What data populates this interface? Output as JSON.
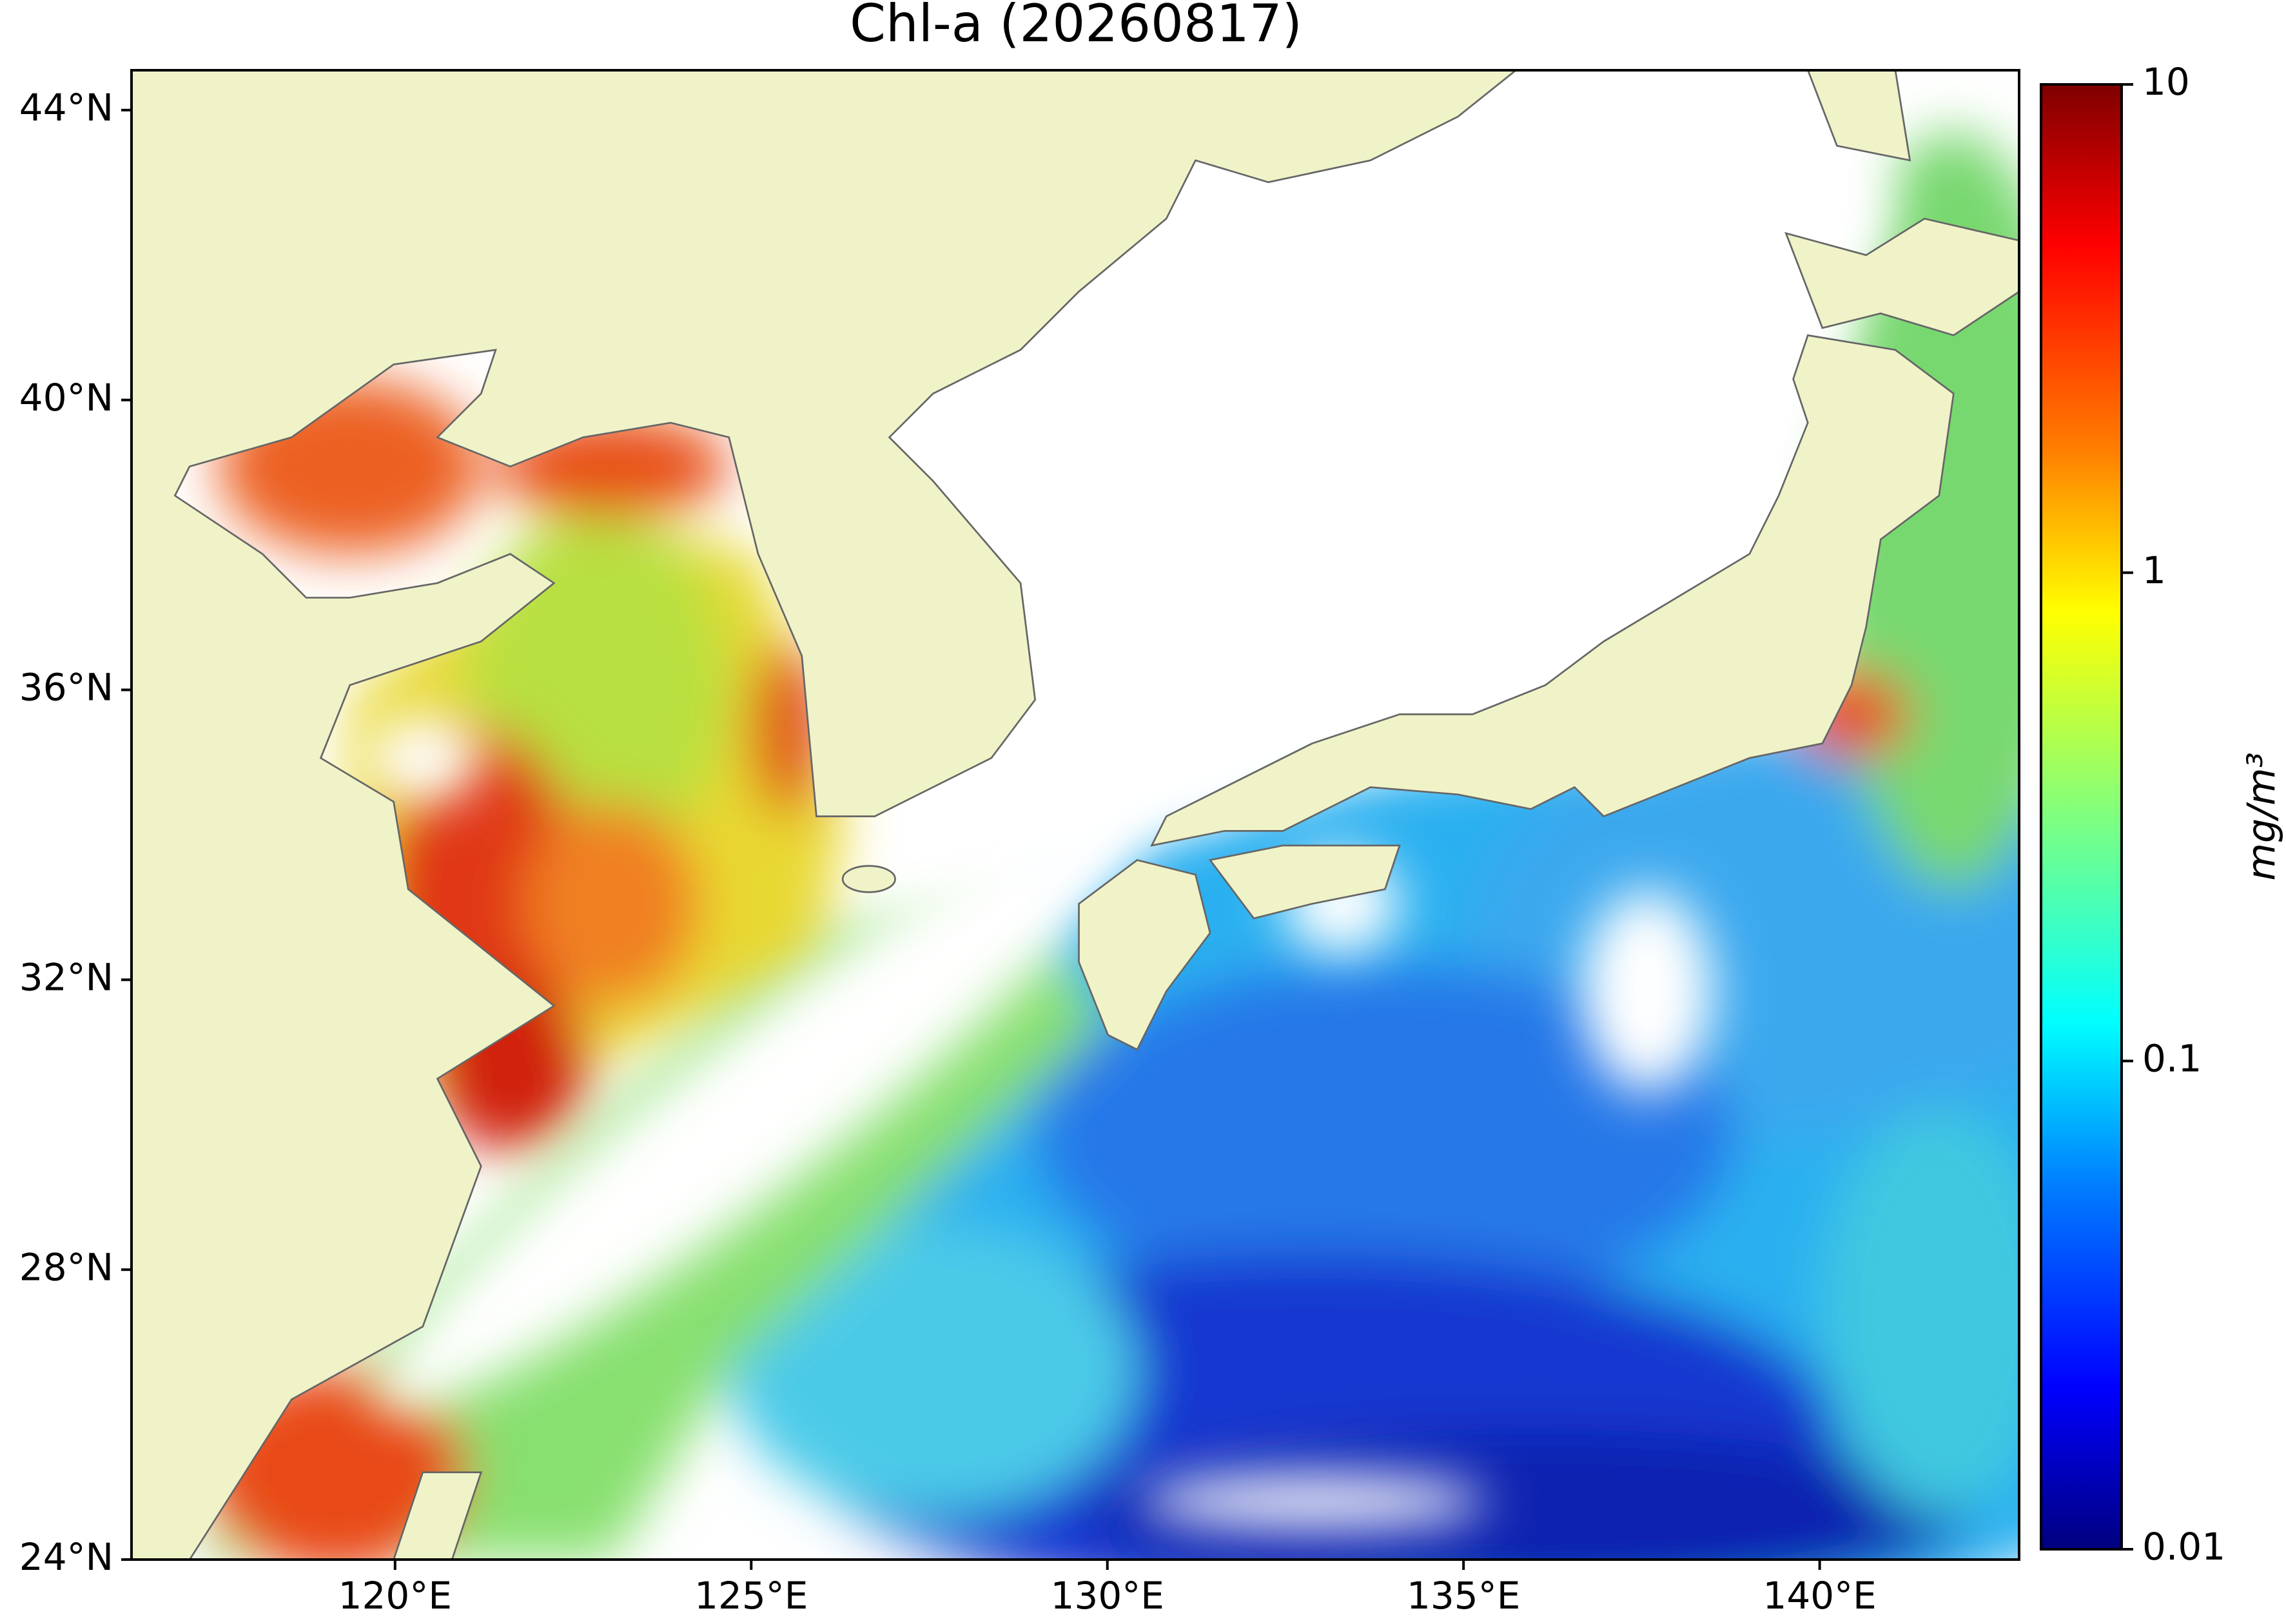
{
  "map": {
    "type": "chlorophyll-map",
    "title": "Chl-a (20260817)",
    "xlim": [
      116.3,
      142.8
    ],
    "xticks": [
      {
        "value": 120,
        "label": "120°E"
      },
      {
        "value": 125,
        "label": "125°E"
      },
      {
        "value": 130,
        "label": "130°E"
      },
      {
        "value": 135,
        "label": "135°E"
      },
      {
        "value": 140,
        "label": "140°E"
      }
    ],
    "ylim": [
      24,
      44.55
    ],
    "yticks": [
      {
        "value": 24,
        "label": "24°N"
      },
      {
        "value": 28,
        "label": "28°N"
      },
      {
        "value": 32,
        "label": "32°N"
      },
      {
        "value": 36,
        "label": "36°N"
      },
      {
        "value": 40,
        "label": "40°N"
      },
      {
        "value": 44,
        "label": "44°N"
      }
    ],
    "colorbar": {
      "label": "mg/m³",
      "scale": "log",
      "colormap": "jet",
      "lim": [
        0.01,
        10
      ],
      "ticks": [
        0.01,
        0.1,
        1,
        10
      ]
    }
  }
}
